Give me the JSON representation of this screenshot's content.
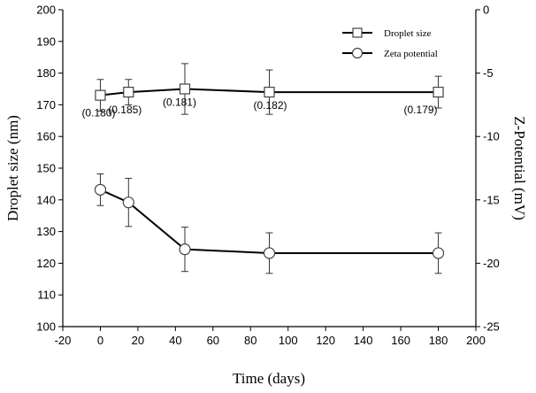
{
  "chart_data": {
    "type": "line",
    "title": "",
    "xlabel": "Time (days)",
    "ylabel": "Droplet size (nm)",
    "y2label": "Z-Potential (mV)",
    "xlim": [
      -20,
      200
    ],
    "ylim": [
      100,
      200
    ],
    "y2lim": [
      -25,
      0
    ],
    "xticks": [
      -20,
      0,
      20,
      40,
      60,
      80,
      100,
      120,
      140,
      160,
      180,
      200
    ],
    "yticks": [
      100,
      110,
      120,
      130,
      140,
      150,
      160,
      170,
      180,
      190,
      200
    ],
    "y2ticks": [
      0,
      -5,
      -10,
      -15,
      -20,
      -25
    ],
    "grid": false,
    "legend_position": "top-right",
    "series": [
      {
        "name": "Droplet size",
        "axis": "left",
        "marker": "square",
        "x": [
          0,
          15,
          45,
          90,
          180
        ],
        "y": [
          173,
          174,
          175,
          174,
          174
        ],
        "error": [
          5,
          4,
          8,
          7,
          5
        ],
        "data_labels": [
          "(0.180)",
          "(0.185)",
          "(0.181)",
          "(0.182)",
          "(0.179)"
        ]
      },
      {
        "name": "Zeta potential",
        "axis": "right",
        "marker": "circle",
        "x": [
          0,
          15,
          45,
          90,
          180
        ],
        "y": [
          -14.2,
          -15.2,
          -18.9,
          -19.2,
          -19.2
        ],
        "error": [
          1.25,
          1.9,
          1.75,
          1.6,
          1.6
        ]
      }
    ]
  }
}
